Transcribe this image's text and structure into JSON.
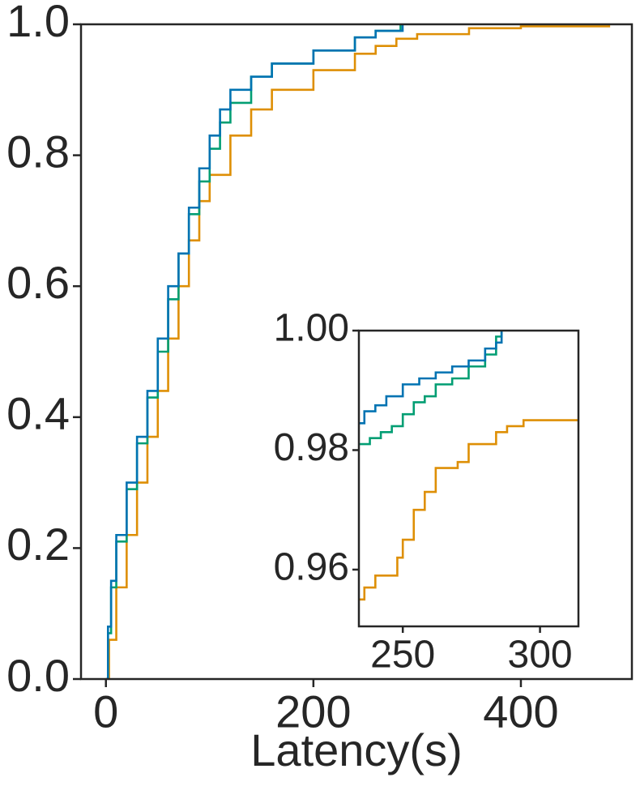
{
  "chart_data": [
    {
      "type": "line",
      "step": "post",
      "x_label": "Latency(s)",
      "xlim": [
        -24,
        507
      ],
      "xticks": [
        0,
        200,
        400
      ],
      "ylim": [
        0,
        1
      ],
      "yticks": [
        {
          "value": 0,
          "label": "0.0"
        },
        {
          "value": 0.2,
          "label": "0.2"
        },
        {
          "value": 0.4,
          "label": "0.4"
        },
        {
          "value": 0.6,
          "label": "0.6"
        },
        {
          "value": 0.8,
          "label": "0.8"
        },
        {
          "value": 1,
          "label": "1.0"
        }
      ],
      "series": [
        {
          "color": "#de8f05",
          "x": [
            0,
            3,
            10,
            20,
            30,
            40,
            50,
            60,
            70,
            80,
            90,
            100,
            120,
            140,
            160,
            200,
            240,
            260,
            280,
            300,
            350,
            400,
            485
          ],
          "values": [
            0,
            0.06,
            0.14,
            0.22,
            0.3,
            0.37,
            0.44,
            0.52,
            0.6,
            0.67,
            0.73,
            0.77,
            0.83,
            0.87,
            0.9,
            0.93,
            0.955,
            0.967,
            0.978,
            0.985,
            0.994,
            0.997,
            1.0
          ]
        },
        {
          "color": "#029e73",
          "x": [
            0,
            2,
            5,
            10,
            20,
            30,
            40,
            50,
            60,
            70,
            80,
            90,
            100,
            110,
            120,
            140,
            160,
            200,
            240,
            260,
            284
          ],
          "values": [
            0,
            0.07,
            0.14,
            0.21,
            0.29,
            0.36,
            0.43,
            0.5,
            0.58,
            0.65,
            0.71,
            0.76,
            0.81,
            0.85,
            0.88,
            0.92,
            0.94,
            0.96,
            0.98,
            0.99,
            1.0
          ]
        },
        {
          "color": "#0173b2",
          "x": [
            0,
            2,
            5,
            10,
            20,
            30,
            40,
            50,
            60,
            70,
            80,
            90,
            100,
            110,
            120,
            140,
            160,
            200,
            240,
            260,
            286
          ],
          "values": [
            0,
            0.08,
            0.15,
            0.22,
            0.3,
            0.37,
            0.44,
            0.52,
            0.6,
            0.65,
            0.72,
            0.78,
            0.83,
            0.87,
            0.9,
            0.92,
            0.94,
            0.96,
            0.98,
            0.99,
            1.0
          ]
        }
      ]
    },
    {
      "type": "line",
      "step": "post",
      "xlim": [
        234,
        314
      ],
      "xticks": [
        250,
        300
      ],
      "ylim": [
        0.9505,
        1
      ],
      "yticks": [
        0.96,
        0.98,
        {
          "value": 1,
          "label": "1.00"
        }
      ],
      "series": [
        {
          "color": "#de8f05",
          "x": [
            234,
            236,
            240,
            248,
            250,
            254,
            258,
            262,
            270,
            274,
            284,
            288,
            294,
            314
          ],
          "values": [
            0.955,
            0.957,
            0.959,
            0.962,
            0.965,
            0.97,
            0.973,
            0.977,
            0.978,
            0.981,
            0.983,
            0.984,
            0.985,
            0.985
          ]
        },
        {
          "color": "#029e73",
          "x": [
            234,
            238,
            242,
            246,
            250,
            254,
            258,
            262,
            268,
            274,
            280,
            284,
            286
          ],
          "values": [
            0.981,
            0.982,
            0.983,
            0.984,
            0.986,
            0.988,
            0.989,
            0.991,
            0.992,
            0.994,
            0.996,
            0.999,
            1.0
          ]
        },
        {
          "color": "#0173b2",
          "x": [
            234,
            236,
            240,
            244,
            250,
            256,
            262,
            268,
            274,
            280,
            284,
            286
          ],
          "values": [
            0.9845,
            0.9865,
            0.9875,
            0.989,
            0.991,
            0.992,
            0.993,
            0.994,
            0.995,
            0.997,
            0.998,
            1.0
          ]
        }
      ]
    }
  ]
}
